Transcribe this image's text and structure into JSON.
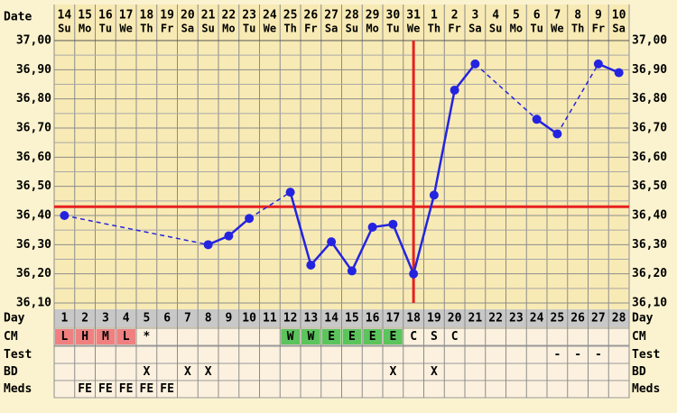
{
  "chart_data": {
    "type": "line",
    "x_label": "Date",
    "dates": [
      "14",
      "15",
      "16",
      "17",
      "18",
      "19",
      "20",
      "21",
      "22",
      "23",
      "24",
      "25",
      "26",
      "27",
      "28",
      "29",
      "30",
      "31",
      "1",
      "2",
      "3",
      "4",
      "5",
      "6",
      "7",
      "8",
      "9",
      "10"
    ],
    "weekdays": [
      "Su",
      "Mo",
      "Tu",
      "We",
      "Th",
      "Fr",
      "Sa",
      "Su",
      "Mo",
      "Tu",
      "We",
      "Th",
      "Fr",
      "Sa",
      "Su",
      "Mo",
      "Tu",
      "We",
      "Th",
      "Fr",
      "Sa",
      "Su",
      "Mo",
      "Tu",
      "We",
      "Th",
      "Fr",
      "Sa"
    ],
    "day_label": "Day",
    "categories": [
      1,
      2,
      3,
      4,
      5,
      6,
      7,
      8,
      9,
      10,
      11,
      12,
      13,
      14,
      15,
      16,
      17,
      18,
      19,
      20,
      21,
      22,
      23,
      24,
      25,
      26,
      27,
      28
    ],
    "series": [
      {
        "color": "#2424e0",
        "values": [
          36.4,
          null,
          null,
          null,
          null,
          null,
          null,
          36.3,
          36.33,
          36.39,
          null,
          36.48,
          36.23,
          36.31,
          36.21,
          36.36,
          36.37,
          36.2,
          36.47,
          36.83,
          36.92,
          null,
          null,
          36.73,
          36.68,
          null,
          36.92,
          36.89
        ]
      }
    ],
    "ylim": [
      36.1,
      37.0
    ],
    "yticks": [
      {
        "value": 37.0,
        "label": "37,00"
      },
      {
        "value": 36.9,
        "label": "36,90"
      },
      {
        "value": 36.8,
        "label": "36,80"
      },
      {
        "value": 36.7,
        "label": "36,70"
      },
      {
        "value": 36.6,
        "label": "36,60"
      },
      {
        "value": 36.5,
        "label": "36,50"
      },
      {
        "value": 36.4,
        "label": "36,40"
      },
      {
        "value": 36.3,
        "label": "36,30"
      },
      {
        "value": 36.2,
        "label": "36,20"
      },
      {
        "value": 36.1,
        "label": "36,10"
      }
    ],
    "grid": true,
    "coverline": {
      "value": 36.43,
      "color": "#e62020"
    },
    "ovulation_day": 18
  },
  "table": {
    "rows": [
      {
        "label": "CM",
        "cells": [
          "L",
          "H",
          "M",
          "L",
          "*",
          null,
          null,
          null,
          null,
          null,
          null,
          "W",
          "W",
          "E",
          "E",
          "E",
          "E",
          "C",
          "S",
          "C",
          null,
          null,
          null,
          null,
          null,
          null,
          null,
          null
        ],
        "colors": [
          "#f08080",
          "#f08080",
          "#f08080",
          "#f08080",
          null,
          null,
          null,
          null,
          null,
          null,
          null,
          "#5cc45c",
          "#5cc45c",
          "#5cc45c",
          "#5cc45c",
          "#5cc45c",
          "#5cc45c",
          null,
          null,
          null,
          null,
          null,
          null,
          null,
          null,
          null,
          null,
          null
        ]
      },
      {
        "label": "Test",
        "cells": [
          null,
          null,
          null,
          null,
          null,
          null,
          null,
          null,
          null,
          null,
          null,
          null,
          null,
          null,
          null,
          null,
          null,
          null,
          null,
          null,
          null,
          null,
          null,
          null,
          "-",
          "-",
          "-",
          null
        ]
      },
      {
        "label": "BD",
        "cells": [
          null,
          null,
          null,
          null,
          "X",
          null,
          "X",
          "X",
          null,
          null,
          null,
          null,
          null,
          null,
          null,
          null,
          "X",
          null,
          "X",
          null,
          null,
          null,
          null,
          null,
          null,
          null,
          null,
          null
        ]
      },
      {
        "label": "Meds",
        "cells": [
          null,
          "FE",
          "FE",
          "FE",
          "FE",
          "FE",
          null,
          null,
          null,
          null,
          null,
          null,
          null,
          null,
          null,
          null,
          null,
          null,
          null,
          null,
          null,
          null,
          null,
          null,
          null,
          null,
          null,
          null
        ]
      }
    ]
  }
}
